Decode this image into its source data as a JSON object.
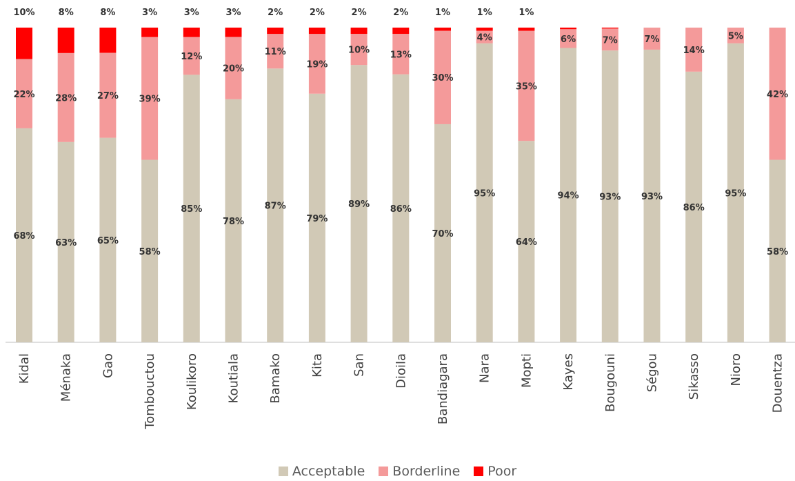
{
  "chart_data": {
    "type": "bar",
    "stacked": true,
    "percent_stacked": true,
    "categories": [
      "Kidal",
      "Ménaka",
      "Gao",
      "Tombouctou",
      "Koulikoro",
      "Koutiala",
      "Bamako",
      "Kita",
      "San",
      "Dioila",
      "Bandiagara",
      "Nara",
      "Mopti",
      "Kayes",
      "Bougouni",
      "Ségou",
      "Sikasso",
      "Nioro",
      "Douentza"
    ],
    "series": [
      {
        "name": "Acceptable",
        "color": "#d1c9b6",
        "values": [
          68,
          63,
          65,
          58,
          85,
          78,
          87,
          79,
          89,
          86,
          70,
          95,
          64,
          94,
          93,
          93,
          86,
          95,
          58
        ],
        "labels": [
          "68%",
          "63%",
          "65%",
          "58%",
          "85%",
          "78%",
          "87%",
          "79%",
          "89%",
          "86%",
          "70%",
          "95%",
          "64%",
          "94%",
          "93%",
          "93%",
          "86%",
          "95%",
          "58%"
        ]
      },
      {
        "name": "Borderline",
        "color": "#f49a9a",
        "values": [
          22,
          28,
          27,
          39,
          12,
          20,
          11,
          19,
          10,
          13,
          30,
          4,
          35,
          6,
          7,
          7,
          14,
          5,
          42
        ],
        "labels": [
          "22%",
          "28%",
          "27%",
          "39%",
          "12%",
          "20%",
          "11%",
          "19%",
          "10%",
          "13%",
          "30%",
          "4%",
          "35%",
          "6%",
          "7%",
          "7%",
          "14%",
          "5%",
          "42%"
        ]
      },
      {
        "name": "Poor",
        "color": "#ff0000",
        "values": [
          10,
          8,
          8,
          3,
          3,
          3,
          2,
          2,
          2,
          2,
          1,
          1,
          1,
          0.5,
          0.3,
          0,
          0,
          0,
          0
        ],
        "labels": [
          "10%",
          "8%",
          "8%",
          "3%",
          "3%",
          "3%",
          "2%",
          "2%",
          "2%",
          "2%",
          "1%",
          "1%",
          "1%",
          "",
          "",
          "",
          "",
          "",
          ""
        ]
      }
    ],
    "ylim": [
      0,
      100
    ],
    "grid": false,
    "legend_position": "bottom"
  }
}
